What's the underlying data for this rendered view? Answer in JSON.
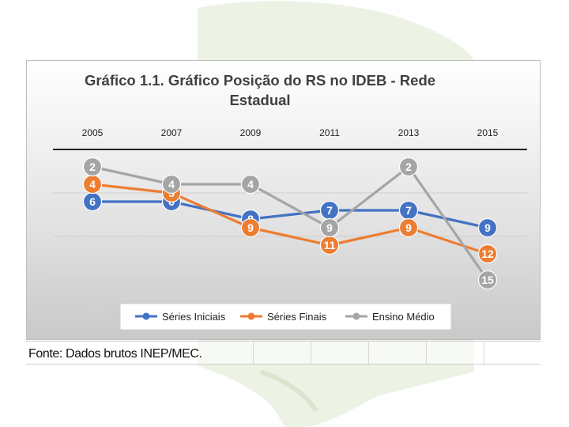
{
  "chart_data": {
    "type": "line",
    "title_line1": "Gráfico 1.1. Gráfico Posição do RS no IDEB - Rede",
    "title_line2": "Estadual",
    "categories": [
      "2005",
      "2007",
      "2009",
      "2011",
      "2013",
      "2015"
    ],
    "y_axis": {
      "reversed": true,
      "range": [
        0,
        16
      ],
      "gridlines": [
        0,
        5,
        10,
        15
      ],
      "tick_labels_shown": false
    },
    "x_axis_position": "top",
    "legend_position": "bottom",
    "data_labels": true,
    "series": [
      {
        "name": "Séries Iniciais",
        "color": "#4472c4",
        "values": [
          6,
          6,
          8,
          7,
          7,
          9
        ]
      },
      {
        "name": "Séries Finais",
        "color": "#ed7d31",
        "values": [
          4,
          5,
          9,
          11,
          9,
          12
        ]
      },
      {
        "name": "Ensino Médio",
        "color": "#a5a5a5",
        "values": [
          2,
          4,
          4,
          9,
          2,
          15
        ]
      }
    ]
  },
  "source": "Fonte: Dados brutos INEP/MEC."
}
